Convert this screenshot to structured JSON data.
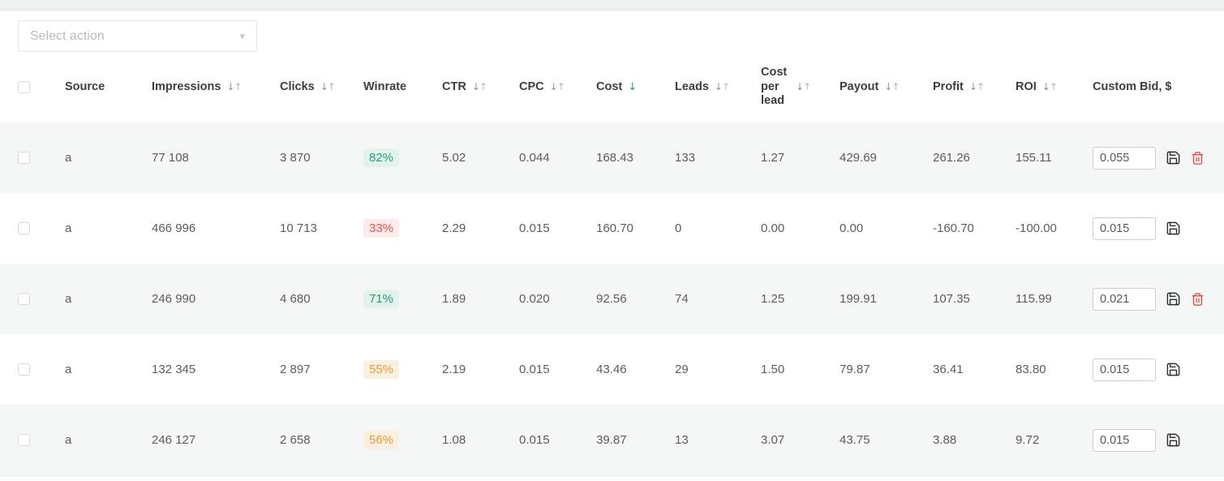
{
  "toolbar": {
    "select_action_placeholder": "Select action"
  },
  "icons": {
    "sort_desc": "↓",
    "sort_asc": "↑",
    "chevron_down": "▾"
  },
  "colors": {
    "sort_active": "#21a16b",
    "row_alt_bg": "#f5f6f6",
    "badge_good_text": "#2aa06e",
    "badge_good_bg": "#e2f3eb",
    "badge_bad_text": "#f0544f",
    "badge_bad_bg": "#fdebea",
    "badge_mid_text": "#eb9a3d",
    "badge_mid_bg": "#faf0df",
    "trash_red": "#e2453c"
  },
  "table": {
    "columns": [
      {
        "key": "source",
        "label": "Source",
        "sortable": false
      },
      {
        "key": "impressions",
        "label": "Impressions",
        "sortable": true
      },
      {
        "key": "clicks",
        "label": "Clicks",
        "sortable": true
      },
      {
        "key": "winrate",
        "label": "Winrate",
        "sortable": false
      },
      {
        "key": "ctr",
        "label": "CTR",
        "sortable": true
      },
      {
        "key": "cpc",
        "label": "CPC",
        "sortable": true
      },
      {
        "key": "cost",
        "label": "Cost",
        "sortable": true,
        "sorted": "desc"
      },
      {
        "key": "leads",
        "label": "Leads",
        "sortable": true
      },
      {
        "key": "cost_per_lead",
        "label": "Cost per lead",
        "sortable": true
      },
      {
        "key": "payout",
        "label": "Payout",
        "sortable": true
      },
      {
        "key": "profit",
        "label": "Profit",
        "sortable": true
      },
      {
        "key": "roi",
        "label": "ROI",
        "sortable": true
      },
      {
        "key": "custom_bid",
        "label": "Custom Bid, $",
        "sortable": false
      }
    ],
    "rows": [
      {
        "source": "a",
        "impressions": "77 108",
        "clicks": "3 870",
        "winrate": "82%",
        "winrate_level": "good",
        "ctr": "5.02",
        "cpc": "0.044",
        "cost": "168.43",
        "leads": "133",
        "cost_per_lead": "1.27",
        "payout": "429.69",
        "profit": "261.26",
        "roi": "155.11",
        "custom_bid": "0.055",
        "can_delete": true
      },
      {
        "source": "a",
        "impressions": "466 996",
        "clicks": "10 713",
        "winrate": "33%",
        "winrate_level": "bad",
        "ctr": "2.29",
        "cpc": "0.015",
        "cost": "160.70",
        "leads": "0",
        "cost_per_lead": "0.00",
        "payout": "0.00",
        "profit": "-160.70",
        "roi": "-100.00",
        "custom_bid": "0.015",
        "can_delete": false
      },
      {
        "source": "a",
        "impressions": "246 990",
        "clicks": "4 680",
        "winrate": "71%",
        "winrate_level": "good",
        "ctr": "1.89",
        "cpc": "0.020",
        "cost": "92.56",
        "leads": "74",
        "cost_per_lead": "1.25",
        "payout": "199.91",
        "profit": "107.35",
        "roi": "115.99",
        "custom_bid": "0.021",
        "can_delete": true
      },
      {
        "source": "a",
        "impressions": "132 345",
        "clicks": "2 897",
        "winrate": "55%",
        "winrate_level": "mid",
        "ctr": "2.19",
        "cpc": "0.015",
        "cost": "43.46",
        "leads": "29",
        "cost_per_lead": "1.50",
        "payout": "79.87",
        "profit": "36.41",
        "roi": "83.80",
        "custom_bid": "0.015",
        "can_delete": false
      },
      {
        "source": "a",
        "impressions": "246 127",
        "clicks": "2 658",
        "winrate": "56%",
        "winrate_level": "mid",
        "ctr": "1.08",
        "cpc": "0.015",
        "cost": "39.87",
        "leads": "13",
        "cost_per_lead": "3.07",
        "payout": "43.75",
        "profit": "3.88",
        "roi": "9.72",
        "custom_bid": "0.015",
        "can_delete": false
      }
    ]
  }
}
